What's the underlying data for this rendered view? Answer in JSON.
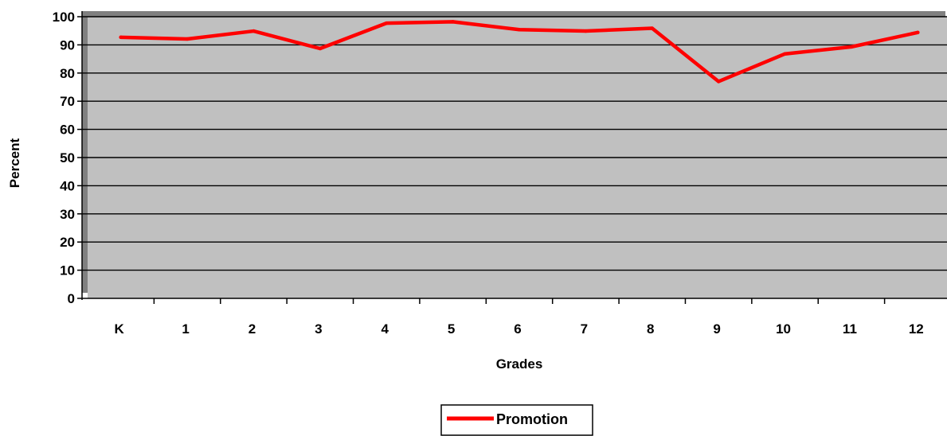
{
  "chart_data": {
    "type": "line",
    "title": "",
    "xlabel": "Grades",
    "ylabel": "Percent",
    "categories": [
      "K",
      "1",
      "2",
      "3",
      "4",
      "5",
      "6",
      "7",
      "8",
      "9",
      "10",
      "11",
      "12"
    ],
    "series": [
      {
        "name": "Promotion",
        "values": [
          92.7,
          92.1,
          94.9,
          88.7,
          97.7,
          98.2,
          95.4,
          94.9,
          95.9,
          77.0,
          86.8,
          89.3,
          94.4
        ],
        "color": "#ff0000"
      }
    ],
    "ylim": [
      0,
      100
    ],
    "yticks": [
      0,
      10,
      20,
      30,
      40,
      50,
      60,
      70,
      80,
      90,
      100
    ],
    "grid": true,
    "legend": "bottom-center",
    "colors": {
      "plot_background": "#c0c0c0",
      "plot_shadow": "#808080",
      "gridline": "#000000",
      "line": "#ff0000"
    }
  }
}
